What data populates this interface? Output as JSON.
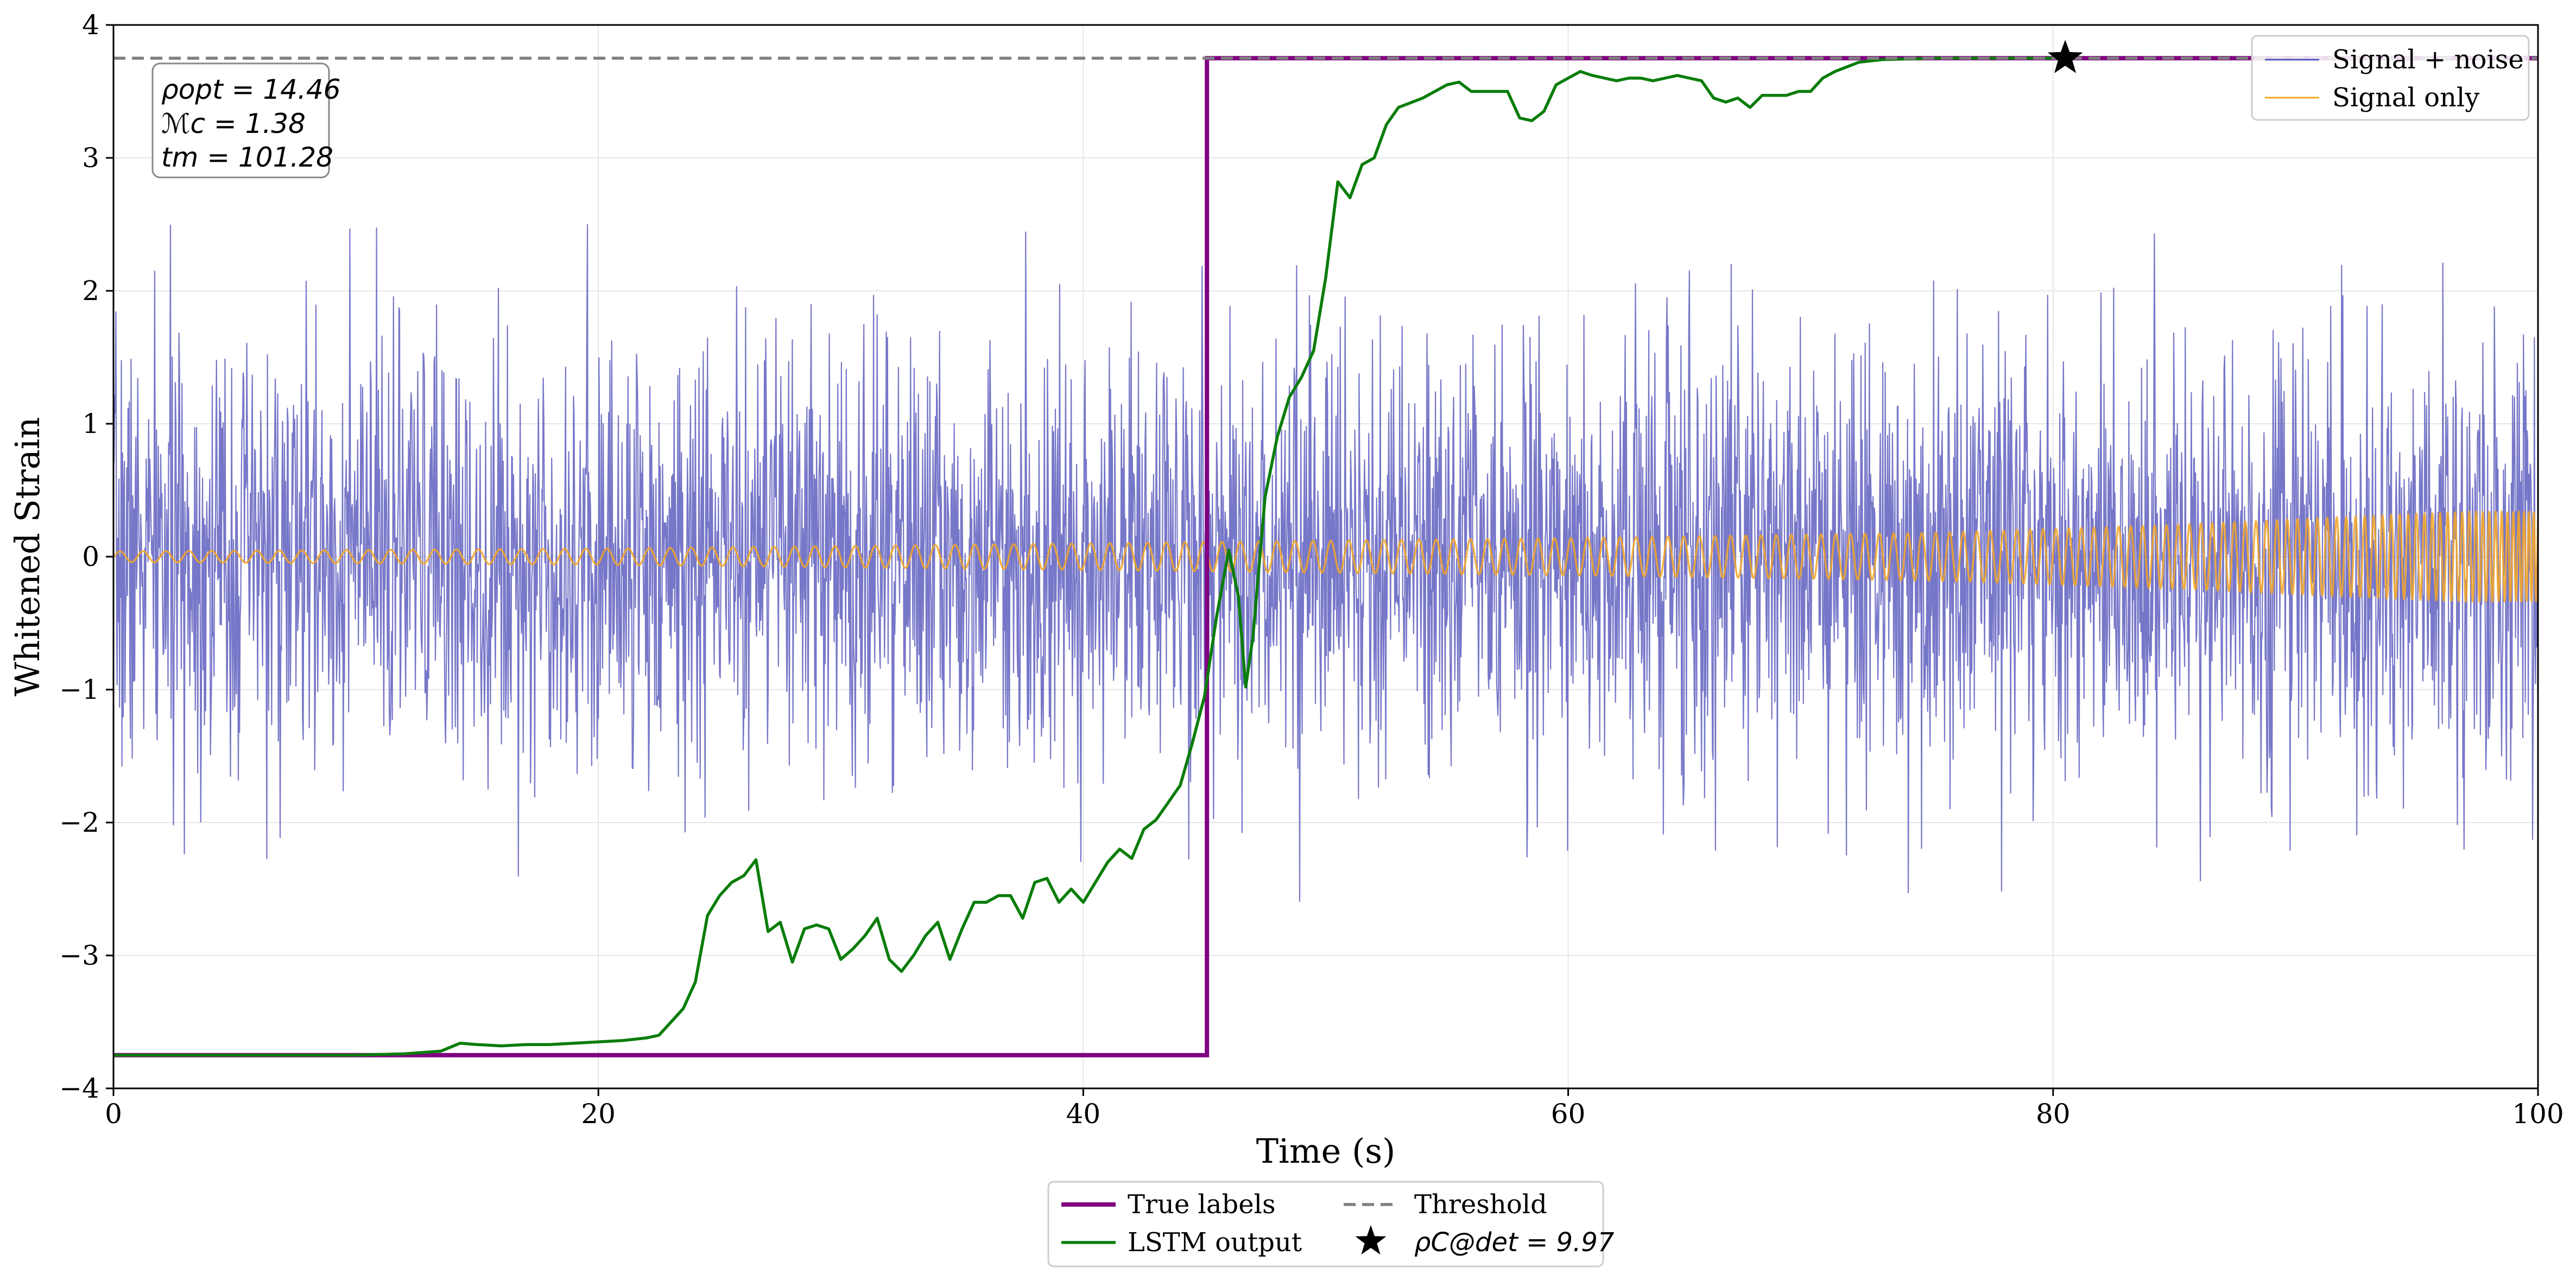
{
  "chart_data": {
    "type": "line",
    "xlabel": "Time (s)",
    "ylabel": "Whitened Strain",
    "xlim": [
      0,
      100
    ],
    "ylim": [
      -4,
      4
    ],
    "grid": true,
    "x_ticks": [
      0,
      20,
      40,
      60,
      80,
      100
    ],
    "y_ticks": [
      -4,
      -3,
      -2,
      -1,
      0,
      1,
      2,
      3,
      4
    ],
    "x_tick_labels": [
      "0",
      "20",
      "40",
      "60",
      "80",
      "100"
    ],
    "y_tick_labels": [
      "−4",
      "−3",
      "−2",
      "−1",
      "0",
      "1",
      "2",
      "3",
      "4"
    ],
    "colors": {
      "signal_noise": "#5555bb",
      "signal_only": "#f5a623",
      "true_labels": "#800080",
      "lstm": "#0a7d0a",
      "threshold": "#808080",
      "marker": "#000000",
      "axes": "#000000",
      "grid": "#e6e6e6"
    },
    "annotation_box": {
      "lines": [
        "ρopt = 14.46",
        "ℳc = 1.38",
        "tm = 101.28"
      ],
      "values": {
        "rho_opt": 14.46,
        "M_c": 1.38,
        "t_m": 101.28
      }
    },
    "legend_top_right": {
      "placement": "upper right",
      "entries": [
        "Signal + noise",
        "Signal only"
      ]
    },
    "legend_bottom": {
      "placement": "below axes, centered",
      "entries": [
        "True labels",
        "LSTM output",
        "Threshold",
        "ρC@det = 9.97"
      ]
    },
    "threshold_y": 3.75,
    "detection_marker": {
      "x": 80.5,
      "y": 3.75,
      "label": "ρC@det = 9.97",
      "rho_det": 9.97
    },
    "series": [
      {
        "name": "Signal + noise",
        "kind": "noise",
        "sample_rate_hz": 40,
        "std": 0.8,
        "x_range": [
          0,
          100
        ],
        "seed": 7
      },
      {
        "name": "Signal only",
        "kind": "chirp",
        "x_range": [
          0,
          100
        ],
        "envelope": [
          [
            0,
            0.04
          ],
          [
            20,
            0.06
          ],
          [
            40,
            0.1
          ],
          [
            60,
            0.14
          ],
          [
            75,
            0.18
          ],
          [
            85,
            0.24
          ],
          [
            92,
            0.3
          ],
          [
            97,
            0.34
          ],
          [
            100,
            0.34
          ]
        ],
        "approx_cycles_visible_near_end": true
      },
      {
        "name": "True labels",
        "kind": "step",
        "points": [
          [
            0,
            -3.75
          ],
          [
            45.1,
            -3.75
          ],
          [
            45.1,
            3.75
          ],
          [
            100,
            3.75
          ]
        ]
      },
      {
        "name": "LSTM output",
        "kind": "line",
        "points": [
          [
            0,
            -3.75
          ],
          [
            5,
            -3.75
          ],
          [
            10,
            -3.75
          ],
          [
            12,
            -3.74
          ],
          [
            13.5,
            -3.72
          ],
          [
            14.3,
            -3.66
          ],
          [
            15,
            -3.67
          ],
          [
            16,
            -3.68
          ],
          [
            17,
            -3.67
          ],
          [
            18,
            -3.67
          ],
          [
            19,
            -3.66
          ],
          [
            20,
            -3.65
          ],
          [
            21,
            -3.64
          ],
          [
            22,
            -3.62
          ],
          [
            22.5,
            -3.6
          ],
          [
            23,
            -3.5
          ],
          [
            23.5,
            -3.4
          ],
          [
            24,
            -3.2
          ],
          [
            24.5,
            -2.7
          ],
          [
            25,
            -2.55
          ],
          [
            25.5,
            -2.45
          ],
          [
            26,
            -2.4
          ],
          [
            26.5,
            -2.28
          ],
          [
            27,
            -2.82
          ],
          [
            27.5,
            -2.75
          ],
          [
            28,
            -3.05
          ],
          [
            28.5,
            -2.8
          ],
          [
            29,
            -2.77
          ],
          [
            29.5,
            -2.8
          ],
          [
            30,
            -3.03
          ],
          [
            30.5,
            -2.95
          ],
          [
            31,
            -2.85
          ],
          [
            31.5,
            -2.72
          ],
          [
            32,
            -3.03
          ],
          [
            32.5,
            -3.12
          ],
          [
            33,
            -3.0
          ],
          [
            33.5,
            -2.85
          ],
          [
            34,
            -2.75
          ],
          [
            34.5,
            -3.03
          ],
          [
            35,
            -2.8
          ],
          [
            35.5,
            -2.6
          ],
          [
            36,
            -2.6
          ],
          [
            36.5,
            -2.55
          ],
          [
            37,
            -2.55
          ],
          [
            37.5,
            -2.72
          ],
          [
            38,
            -2.45
          ],
          [
            38.5,
            -2.42
          ],
          [
            39,
            -2.6
          ],
          [
            39.5,
            -2.5
          ],
          [
            40,
            -2.6
          ],
          [
            40.5,
            -2.45
          ],
          [
            41,
            -2.3
          ],
          [
            41.5,
            -2.2
          ],
          [
            42,
            -2.27
          ],
          [
            42.5,
            -2.05
          ],
          [
            43,
            -1.98
          ],
          [
            43.5,
            -1.85
          ],
          [
            44,
            -1.72
          ],
          [
            44.5,
            -1.4
          ],
          [
            45,
            -1.05
          ],
          [
            45.5,
            -0.45
          ],
          [
            46,
            0.05
          ],
          [
            46.4,
            -0.3
          ],
          [
            46.7,
            -0.98
          ],
          [
            47,
            -0.6
          ],
          [
            47.5,
            0.45
          ],
          [
            48,
            0.9
          ],
          [
            48.5,
            1.2
          ],
          [
            49,
            1.35
          ],
          [
            49.5,
            1.55
          ],
          [
            50,
            2.1
          ],
          [
            50.5,
            2.82
          ],
          [
            51,
            2.7
          ],
          [
            51.5,
            2.95
          ],
          [
            52,
            3.0
          ],
          [
            52.5,
            3.25
          ],
          [
            53,
            3.38
          ],
          [
            54,
            3.45
          ],
          [
            55,
            3.55
          ],
          [
            55.5,
            3.57
          ],
          [
            56,
            3.5
          ],
          [
            57,
            3.5
          ],
          [
            57.5,
            3.5
          ],
          [
            58,
            3.3
          ],
          [
            58.5,
            3.28
          ],
          [
            59,
            3.35
          ],
          [
            59.5,
            3.55
          ],
          [
            60,
            3.6
          ],
          [
            60.5,
            3.65
          ],
          [
            61,
            3.62
          ],
          [
            61.5,
            3.6
          ],
          [
            62,
            3.58
          ],
          [
            62.5,
            3.6
          ],
          [
            63,
            3.6
          ],
          [
            63.5,
            3.58
          ],
          [
            64,
            3.6
          ],
          [
            64.5,
            3.62
          ],
          [
            65,
            3.6
          ],
          [
            65.5,
            3.58
          ],
          [
            66,
            3.45
          ],
          [
            66.5,
            3.42
          ],
          [
            67,
            3.45
          ],
          [
            67.5,
            3.38
          ],
          [
            68,
            3.47
          ],
          [
            69,
            3.47
          ],
          [
            69.5,
            3.5
          ],
          [
            70,
            3.5
          ],
          [
            70.5,
            3.6
          ],
          [
            71,
            3.65
          ],
          [
            72,
            3.72
          ],
          [
            73,
            3.74
          ],
          [
            75,
            3.75
          ],
          [
            80.5,
            3.75
          ]
        ]
      }
    ]
  }
}
